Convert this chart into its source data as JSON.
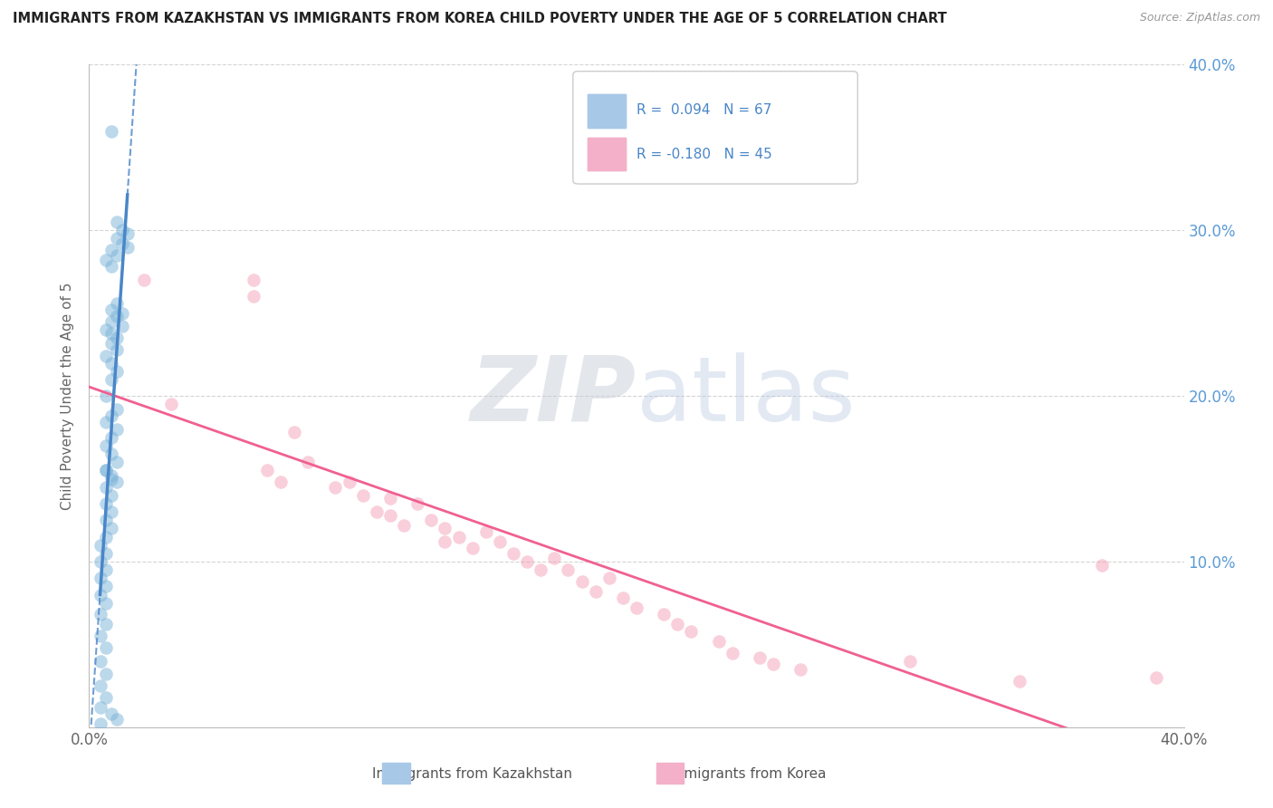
{
  "title": "IMMIGRANTS FROM KAZAKHSTAN VS IMMIGRANTS FROM KOREA CHILD POVERTY UNDER THE AGE OF 5 CORRELATION CHART",
  "source": "Source: ZipAtlas.com",
  "ylabel": "Child Poverty Under the Age of 5",
  "x_min": 0.0,
  "x_max": 0.4,
  "y_min": 0.0,
  "y_max": 0.4,
  "watermark_zip": "ZIP",
  "watermark_atlas": "atlas",
  "background_color": "#ffffff",
  "kazakhstan_color": "#7ab3d9",
  "korea_color": "#f4a0b8",
  "kazakhstan_trend_color": "#4a86c8",
  "korea_trend_color": "#f06090",
  "grid_color": "#d0d0d0",
  "right_axis_color": "#5b9bd5",
  "kazakhstan_scatter": [
    [
      0.008,
      0.36
    ],
    [
      0.01,
      0.305
    ],
    [
      0.012,
      0.3
    ],
    [
      0.014,
      0.298
    ],
    [
      0.01,
      0.295
    ],
    [
      0.012,
      0.292
    ],
    [
      0.014,
      0.29
    ],
    [
      0.008,
      0.288
    ],
    [
      0.01,
      0.285
    ],
    [
      0.006,
      0.282
    ],
    [
      0.008,
      0.278
    ],
    [
      0.01,
      0.256
    ],
    [
      0.008,
      0.252
    ],
    [
      0.012,
      0.25
    ],
    [
      0.01,
      0.248
    ],
    [
      0.008,
      0.245
    ],
    [
      0.012,
      0.242
    ],
    [
      0.006,
      0.24
    ],
    [
      0.008,
      0.238
    ],
    [
      0.01,
      0.235
    ],
    [
      0.008,
      0.232
    ],
    [
      0.01,
      0.228
    ],
    [
      0.006,
      0.224
    ],
    [
      0.008,
      0.22
    ],
    [
      0.01,
      0.215
    ],
    [
      0.008,
      0.21
    ],
    [
      0.006,
      0.2
    ],
    [
      0.01,
      0.192
    ],
    [
      0.008,
      0.188
    ],
    [
      0.006,
      0.184
    ],
    [
      0.01,
      0.18
    ],
    [
      0.008,
      0.175
    ],
    [
      0.006,
      0.17
    ],
    [
      0.008,
      0.165
    ],
    [
      0.01,
      0.16
    ],
    [
      0.006,
      0.155
    ],
    [
      0.008,
      0.15
    ],
    [
      0.006,
      0.145
    ],
    [
      0.008,
      0.14
    ],
    [
      0.006,
      0.135
    ],
    [
      0.008,
      0.13
    ],
    [
      0.006,
      0.125
    ],
    [
      0.008,
      0.12
    ],
    [
      0.006,
      0.115
    ],
    [
      0.004,
      0.11
    ],
    [
      0.006,
      0.105
    ],
    [
      0.004,
      0.1
    ],
    [
      0.006,
      0.095
    ],
    [
      0.004,
      0.09
    ],
    [
      0.006,
      0.085
    ],
    [
      0.004,
      0.08
    ],
    [
      0.006,
      0.075
    ],
    [
      0.004,
      0.068
    ],
    [
      0.006,
      0.062
    ],
    [
      0.004,
      0.055
    ],
    [
      0.006,
      0.048
    ],
    [
      0.004,
      0.04
    ],
    [
      0.006,
      0.032
    ],
    [
      0.004,
      0.025
    ],
    [
      0.006,
      0.018
    ],
    [
      0.004,
      0.012
    ],
    [
      0.008,
      0.008
    ],
    [
      0.01,
      0.005
    ],
    [
      0.004,
      0.002
    ],
    [
      0.006,
      0.155
    ],
    [
      0.008,
      0.152
    ],
    [
      0.01,
      0.148
    ]
  ],
  "korea_scatter": [
    [
      0.02,
      0.27
    ],
    [
      0.03,
      0.195
    ],
    [
      0.06,
      0.27
    ],
    [
      0.06,
      0.26
    ],
    [
      0.065,
      0.155
    ],
    [
      0.07,
      0.148
    ],
    [
      0.075,
      0.178
    ],
    [
      0.08,
      0.16
    ],
    [
      0.09,
      0.145
    ],
    [
      0.095,
      0.148
    ],
    [
      0.1,
      0.14
    ],
    [
      0.105,
      0.13
    ],
    [
      0.11,
      0.138
    ],
    [
      0.11,
      0.128
    ],
    [
      0.115,
      0.122
    ],
    [
      0.12,
      0.135
    ],
    [
      0.125,
      0.125
    ],
    [
      0.13,
      0.12
    ],
    [
      0.13,
      0.112
    ],
    [
      0.135,
      0.115
    ],
    [
      0.14,
      0.108
    ],
    [
      0.145,
      0.118
    ],
    [
      0.15,
      0.112
    ],
    [
      0.155,
      0.105
    ],
    [
      0.16,
      0.1
    ],
    [
      0.165,
      0.095
    ],
    [
      0.17,
      0.102
    ],
    [
      0.175,
      0.095
    ],
    [
      0.18,
      0.088
    ],
    [
      0.185,
      0.082
    ],
    [
      0.19,
      0.09
    ],
    [
      0.195,
      0.078
    ],
    [
      0.2,
      0.072
    ],
    [
      0.21,
      0.068
    ],
    [
      0.215,
      0.062
    ],
    [
      0.22,
      0.058
    ],
    [
      0.23,
      0.052
    ],
    [
      0.235,
      0.045
    ],
    [
      0.245,
      0.042
    ],
    [
      0.25,
      0.038
    ],
    [
      0.26,
      0.035
    ],
    [
      0.34,
      0.028
    ],
    [
      0.37,
      0.098
    ],
    [
      0.3,
      0.04
    ],
    [
      0.39,
      0.03
    ]
  ]
}
